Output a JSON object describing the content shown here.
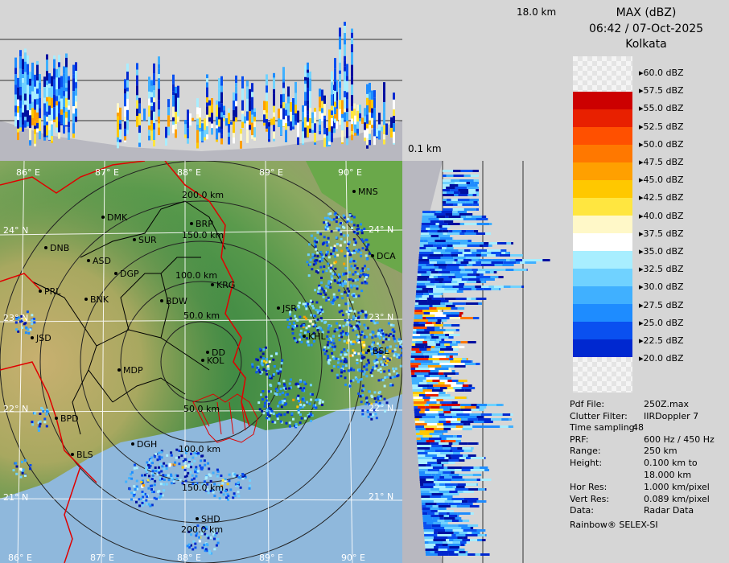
{
  "header": {
    "product": "MAX (dBZ)",
    "datetime": "06:42 / 07-Oct-2025",
    "station": "Kolkata"
  },
  "top_panel": {
    "height_label": "18.0 km",
    "min_label": "0.1 km"
  },
  "axes": {
    "lon_top": [
      "86° E",
      "87° E",
      "88° E",
      "89° E",
      "90° E"
    ],
    "lon_bottom": [
      "86° E",
      "87° E",
      "88° E",
      "89° E",
      "90° E"
    ],
    "lat_right": [
      "24° N",
      "23° N",
      "22° N",
      "21° N"
    ],
    "lat_left": [
      "24° N",
      "23° N",
      "22° N",
      "21° N"
    ]
  },
  "range_rings": [
    "50.0 km",
    "100.0 km",
    "150.0 km",
    "200.0 km",
    "50.0 km",
    "100.0 km",
    "150.0 km",
    "200.0 km"
  ],
  "cities": [
    "MNS",
    "DMK",
    "BRP",
    "DNB",
    "SUR",
    "ASD",
    "DGP",
    "DCA",
    "KRG",
    "PRL",
    "BNK",
    "BDW",
    "JSR",
    "KHL",
    "BSL",
    "JSD",
    "DD",
    "KOL",
    "MDP",
    "BPD",
    "DGH",
    "BLS",
    "SHD"
  ],
  "legend": {
    "levels": [
      "60.0 dBZ",
      "57.5 dBZ",
      "55.0 dBZ",
      "52.5 dBZ",
      "50.0 dBZ",
      "47.5 dBZ",
      "45.0 dBZ",
      "42.5 dBZ",
      "40.0 dBZ",
      "37.5 dBZ",
      "35.0 dBZ",
      "32.5 dBZ",
      "30.0 dBZ",
      "27.5 dBZ",
      "25.0 dBZ",
      "22.5 dBZ",
      "20.0 dBZ"
    ],
    "colors": [
      "#b00000",
      "#cc0000",
      "#e82000",
      "#ff5000",
      "#ff7800",
      "#ffa000",
      "#ffc800",
      "#ffe640",
      "#fff8c8",
      "#ffffff",
      "#a8eeff",
      "#70d2ff",
      "#40b0ff",
      "#1e8cff",
      "#0a50f0",
      "#0028d0",
      "#0010a0"
    ]
  },
  "info": {
    "rows": [
      {
        "key": "Pdf File:",
        "value": "250Z.max"
      },
      {
        "key": "Clutter Filter:",
        "value": "IIRDoppler 7"
      },
      {
        "key": "Time sampling:",
        "value": "48"
      },
      {
        "key": "PRF:",
        "value": "600 Hz / 450 Hz"
      },
      {
        "key": "Range:",
        "value": "250 km"
      },
      {
        "key": "Height:",
        "value": "0.100 km to"
      },
      {
        "key": "",
        "value": "18.000 km"
      },
      {
        "key": "Hor Res:",
        "value": "1.000 km/pixel"
      },
      {
        "key": "Vert Res:",
        "value": "0.089 km/pixel"
      },
      {
        "key": "Data:",
        "value": "Radar Data"
      }
    ],
    "footer": "Rainbow® SELEX-SI"
  }
}
